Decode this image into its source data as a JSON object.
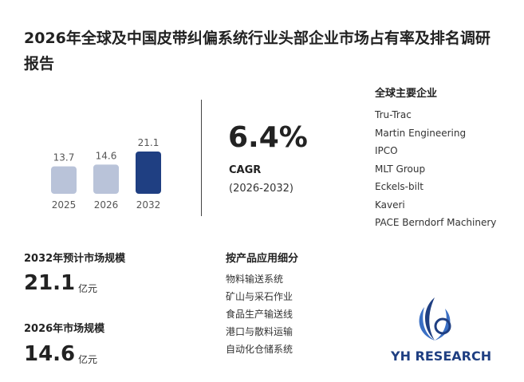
{
  "header": {
    "title": "2026年全球及中国皮带纠偏系统行业头部企业市场占有率及排名调研报告"
  },
  "chart_data": {
    "type": "bar",
    "categories": [
      "2025",
      "2026",
      "2032"
    ],
    "values": [
      13.7,
      14.6,
      21.1
    ],
    "colors": [
      "#b9c3d9",
      "#b9c3d9",
      "#1f3f82"
    ]
  },
  "cagr": {
    "value": "6.4%",
    "label": "CAGR",
    "period": "(2026-2032)"
  },
  "companies": {
    "title": "全球主要企业",
    "items": [
      "Tru-Trac",
      "Martin Engineering",
      "IPCO",
      "MLT Group",
      "Eckels-bilt",
      "Kaveri",
      "PACE Berndorf Machinery"
    ]
  },
  "market_2032": {
    "label": "2032年预计市场规模",
    "value": "21.1",
    "unit": "亿元"
  },
  "market_2026": {
    "label": "2026年市场规模",
    "value": "14.6",
    "unit": "亿元"
  },
  "segments": {
    "title": "按产品应用细分",
    "items": [
      "物料输送系统",
      "矿山与采石作业",
      "食品生产输送线",
      "港口与散料运输",
      "自动化仓储系统"
    ]
  },
  "logo": {
    "text": "YH RESEARCH"
  }
}
